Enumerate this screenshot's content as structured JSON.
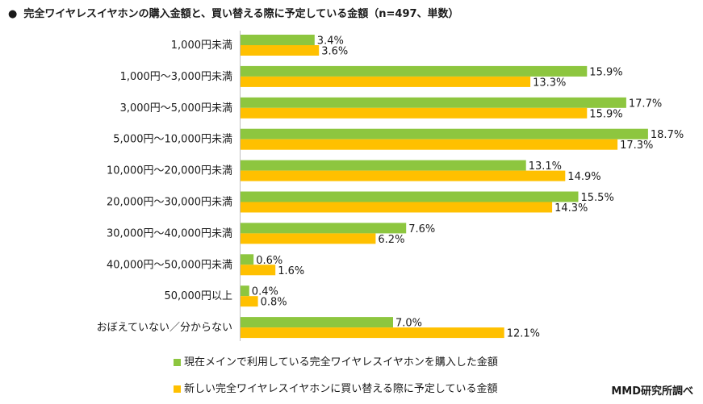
{
  "title": "完全ワイヤレスイヤホンの購入金額と、買い替える際に予定している金額（n=497、単数）",
  "title_bullet": "●",
  "source": "MMD研究所調べ",
  "colors": {
    "green": "#8dc63f",
    "yellow": "#ffc000"
  },
  "chart_data": {
    "type": "bar",
    "orientation": "horizontal",
    "title": "完全ワイヤレスイヤホンの購入金額と、買い替える際に予定している金額（n=497、単数）",
    "categories": [
      "1,000円未満",
      "1,000円～3,000円未満",
      "3,000円～5,000円未満",
      "5,000円～10,000円未満",
      "10,000円～20,000円未満",
      "20,000円～30,000円未満",
      "30,000円～40,000円未満",
      "40,000円～50,000円未満",
      "50,000円以上",
      "おぼえていない／分からない"
    ],
    "series": [
      {
        "name": "現在メインで利用している完全ワイヤレスイヤホンを購入した金額",
        "color": "#8dc63f",
        "values": [
          3.4,
          15.9,
          17.7,
          18.7,
          13.1,
          15.5,
          7.6,
          0.6,
          0.4,
          7.0
        ]
      },
      {
        "name": "新しい完全ワイヤレスイヤホンに買い替える際に予定している金額",
        "color": "#ffc000",
        "values": [
          3.6,
          13.3,
          15.9,
          17.3,
          14.9,
          14.3,
          6.2,
          1.6,
          0.8,
          12.1
        ]
      }
    ],
    "value_suffix": "%",
    "xlim": [
      0,
      20
    ],
    "legend_position": "bottom"
  }
}
